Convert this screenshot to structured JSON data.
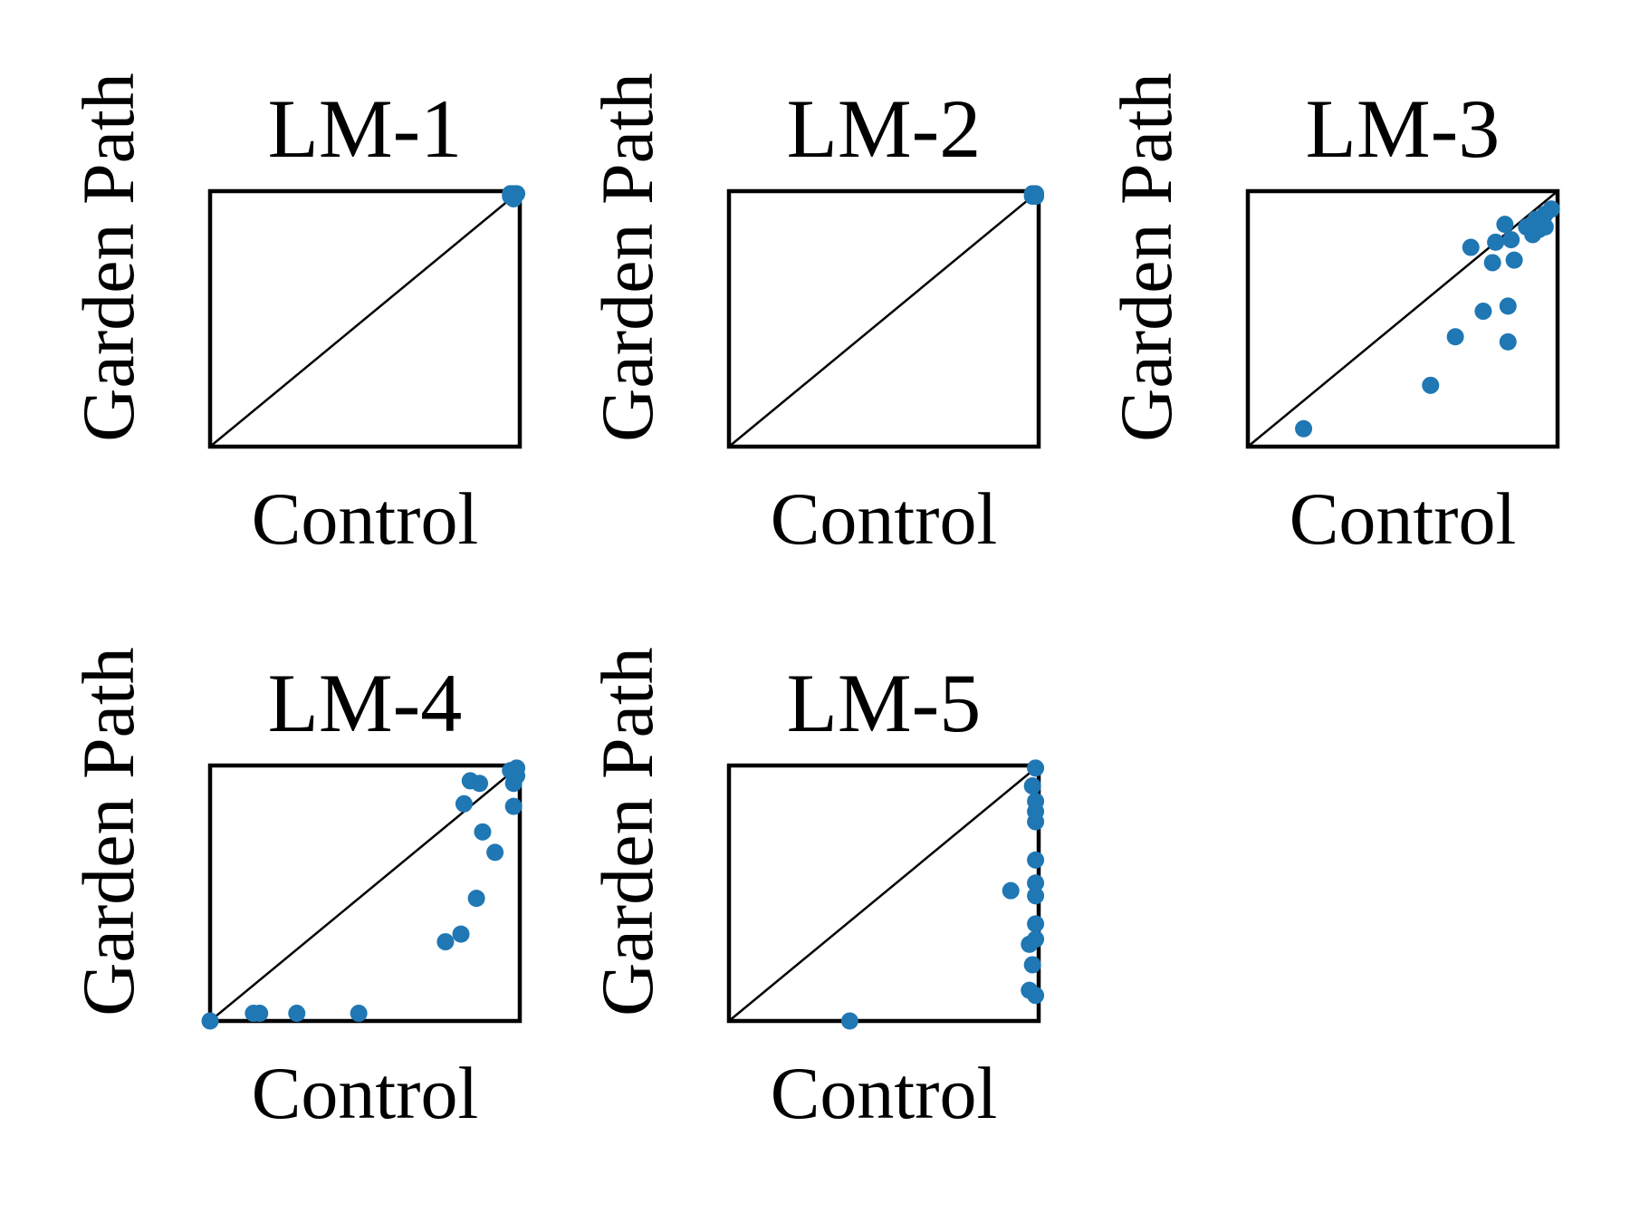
{
  "colors": {
    "points": "#1f77b4",
    "axes": "#000000"
  },
  "chart_data": [
    {
      "type": "scatter",
      "title": "LM-1",
      "xlabel": "Control",
      "ylabel": "Garden Path",
      "xlim": [
        0,
        1
      ],
      "ylim": [
        0,
        1
      ],
      "diagonal": true,
      "grid": false,
      "x": [
        0.97,
        0.98,
        0.99,
        0.98,
        0.97,
        0.98
      ],
      "y": [
        0.99,
        0.98,
        0.99,
        0.97,
        0.98,
        0.99
      ]
    },
    {
      "type": "scatter",
      "title": "LM-2",
      "xlabel": "Control",
      "ylabel": "Garden Path",
      "xlim": [
        0,
        1
      ],
      "ylim": [
        0,
        1
      ],
      "diagonal": true,
      "grid": false,
      "x": [
        0.98,
        0.99,
        0.98,
        0.99
      ],
      "y": [
        0.99,
        0.99,
        0.98,
        0.98
      ]
    },
    {
      "type": "scatter",
      "title": "LM-3",
      "xlabel": "Control",
      "ylabel": "Garden Path",
      "xlim": [
        0,
        1
      ],
      "ylim": [
        0,
        1
      ],
      "diagonal": true,
      "grid": false,
      "x": [
        0.18,
        0.59,
        0.67,
        0.76,
        0.84,
        0.84,
        0.72,
        0.79,
        0.86,
        0.8,
        0.83,
        0.85,
        0.92,
        0.94,
        0.96,
        0.9,
        0.93,
        0.96,
        0.98
      ],
      "y": [
        0.07,
        0.24,
        0.43,
        0.53,
        0.41,
        0.55,
        0.78,
        0.72,
        0.73,
        0.8,
        0.87,
        0.81,
        0.83,
        0.85,
        0.86,
        0.86,
        0.89,
        0.91,
        0.93
      ]
    },
    {
      "type": "scatter",
      "title": "LM-4",
      "xlabel": "Control",
      "ylabel": "Garden Path",
      "xlim": [
        0,
        1
      ],
      "ylim": [
        0,
        1
      ],
      "diagonal": true,
      "grid": false,
      "x": [
        0.0,
        0.14,
        0.16,
        0.28,
        0.48,
        0.76,
        0.81,
        0.86,
        0.88,
        0.92,
        0.82,
        0.98,
        0.87,
        0.98,
        0.84,
        0.99,
        0.97,
        0.99
      ],
      "y": [
        0.0,
        0.03,
        0.03,
        0.03,
        0.03,
        0.31,
        0.34,
        0.48,
        0.74,
        0.66,
        0.85,
        0.84,
        0.93,
        0.93,
        0.94,
        0.96,
        0.98,
        0.99
      ]
    },
    {
      "type": "scatter",
      "title": "LM-5",
      "xlabel": "Control",
      "ylabel": "Garden Path",
      "xlim": [
        0,
        1
      ],
      "ylim": [
        0,
        1
      ],
      "diagonal": true,
      "grid": false,
      "x": [
        0.39,
        0.91,
        0.97,
        0.99,
        0.98,
        0.99,
        0.97,
        0.99,
        0.99,
        0.99,
        0.99,
        0.99,
        0.99,
        0.99,
        0.98,
        0.99
      ],
      "y": [
        0.0,
        0.51,
        0.12,
        0.1,
        0.22,
        0.38,
        0.3,
        0.32,
        0.49,
        0.54,
        0.63,
        0.78,
        0.82,
        0.86,
        0.92,
        0.99
      ]
    }
  ]
}
